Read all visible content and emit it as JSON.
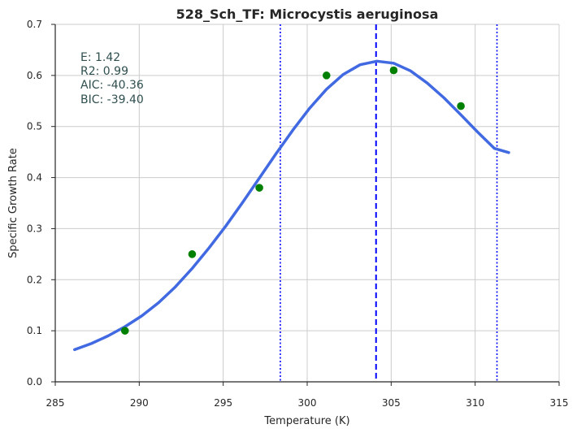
{
  "chart_data": {
    "type": "scatter",
    "title": "528_Sch_TF: Microcystis aeruginosa",
    "xlabel": "Temperature (K)",
    "ylabel": "Specific Growth Rate",
    "xlim": [
      285,
      315
    ],
    "ylim": [
      0,
      0.7
    ],
    "xticks": [
      285,
      290,
      295,
      300,
      305,
      310,
      315
    ],
    "yticks": [
      0.0,
      0.1,
      0.2,
      0.3,
      0.4,
      0.5,
      0.6,
      0.7
    ],
    "grid": true,
    "observed": {
      "color": "#008000",
      "x": [
        289.15,
        293.15,
        297.15,
        301.15,
        305.15,
        309.15
      ],
      "y": [
        0.1,
        0.25,
        0.38,
        0.6,
        0.61,
        0.54
      ]
    },
    "fit": {
      "color": "#4169e1",
      "x": [
        286.15,
        287.15,
        288.15,
        289.15,
        290.15,
        291.15,
        292.15,
        293.15,
        294.15,
        295.15,
        296.15,
        297.15,
        298.15,
        299.15,
        300.15,
        301.15,
        302.15,
        303.15,
        304.15,
        305.15,
        306.15,
        307.15,
        308.15,
        309.15,
        310.15,
        311.15,
        312.0
      ],
      "y": [
        0.063,
        0.075,
        0.09,
        0.108,
        0.129,
        0.155,
        0.186,
        0.222,
        0.262,
        0.305,
        0.351,
        0.399,
        0.447,
        0.493,
        0.536,
        0.573,
        0.602,
        0.621,
        0.628,
        0.624,
        0.609,
        0.585,
        0.556,
        0.523,
        0.489,
        0.457,
        0.449
      ]
    },
    "peak_line": {
      "x": 304.1,
      "color": "#0000ff",
      "style": "dashed"
    },
    "bound_lines": {
      "x": [
        298.4,
        311.3
      ],
      "color": "#0000ff",
      "style": "dotted"
    },
    "stats": [
      "E:  1.42",
      "R2:  0.99",
      "AIC: -40.36",
      "BIC: -39.40"
    ]
  }
}
